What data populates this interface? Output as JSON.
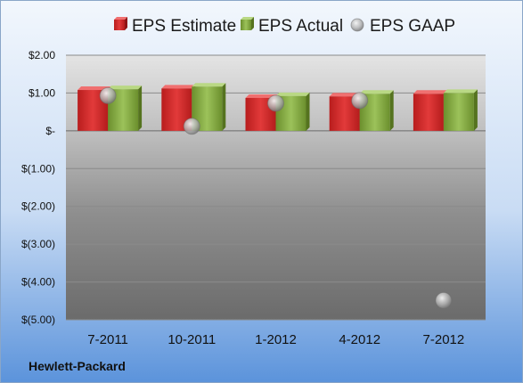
{
  "company": "Hewlett-Packard",
  "colors": {
    "estimate": "#d42a2a",
    "actual": "#7fa33a",
    "gaap": "#a8a8a8",
    "frame_top": "#eef4fc",
    "frame_bottom": "#5d95dc"
  },
  "chart_data": {
    "type": "bar",
    "title": "",
    "xlabel": "",
    "ylabel": "",
    "categories": [
      "7-2011",
      "10-2011",
      "1-2012",
      "4-2012",
      "7-2012"
    ],
    "series": [
      {
        "name": "EPS Estimate",
        "kind": "bar",
        "values": [
          1.08,
          1.12,
          0.87,
          0.91,
          0.98
        ]
      },
      {
        "name": "EPS Actual",
        "kind": "bar",
        "values": [
          1.1,
          1.17,
          0.92,
          0.98,
          1.0
        ]
      },
      {
        "name": "EPS GAAP",
        "kind": "scatter",
        "values": [
          0.93,
          0.12,
          0.73,
          0.8,
          -4.49
        ]
      }
    ],
    "ylim": [
      -5,
      2
    ],
    "yticks": [
      2,
      1,
      0,
      -1,
      -2,
      -3,
      -4,
      -5
    ],
    "ytick_labels": [
      "$2.00",
      "$1.00",
      "$-",
      "$(1.00)",
      "$(2.00)",
      "$(3.00)",
      "$(4.00)",
      "$(5.00)"
    ],
    "grid": true,
    "legend": "top-center"
  }
}
